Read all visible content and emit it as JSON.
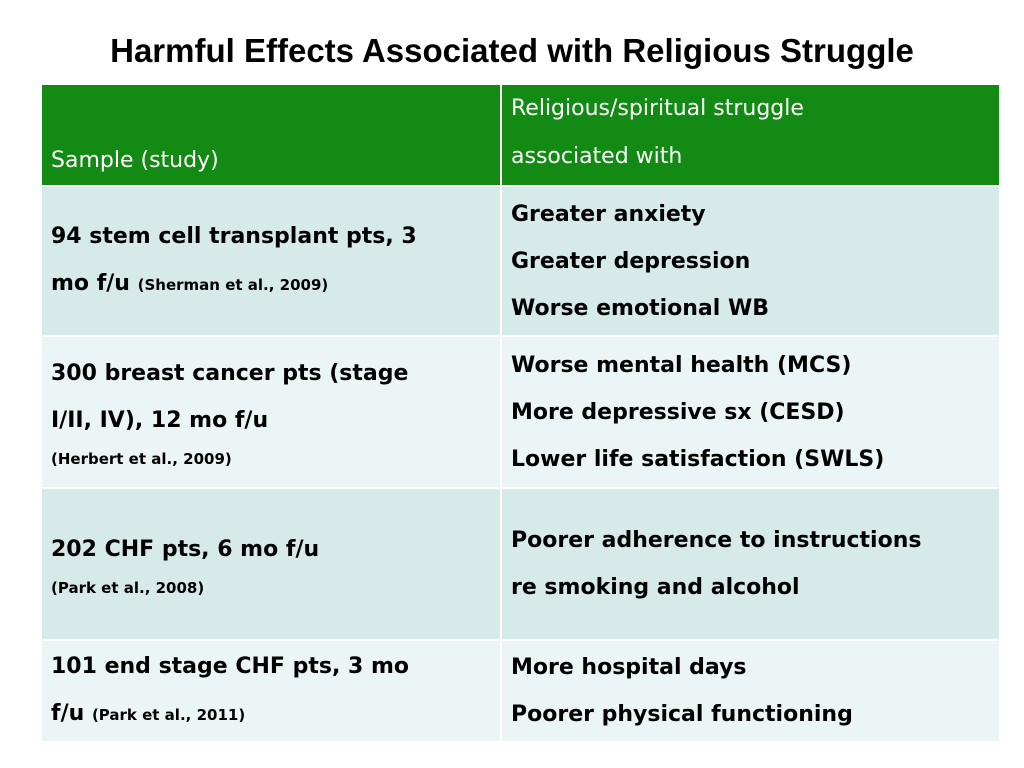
{
  "title": "Harmful Effects Associated with Religious Struggle",
  "header": {
    "col1": "Sample (study)",
    "col2_line1": "Religious/spiritual struggle",
    "col2_line2": "associated with"
  },
  "rows": [
    {
      "sample_line1": "94 stem cell transplant pts, 3",
      "sample_line2": "mo f/u",
      "citation": "(Sherman et al., 2009)",
      "effects": [
        "Greater anxiety",
        "Greater depression",
        "Worse emotional WB"
      ]
    },
    {
      "sample_line1": "300 breast cancer pts (stage",
      "sample_line2": "I/II, IV), 12 mo f/u",
      "citation": "(Herbert et al., 2009)",
      "effects": [
        "Worse mental health (MCS)",
        "More depressive sx (CESD)",
        "Lower life satisfaction (SWLS)"
      ]
    },
    {
      "sample_line1": "202 CHF pts, 6 mo f/u",
      "citation": "(Park et al., 2008)",
      "effects": [
        "Poorer adherence to instructions",
        "re smoking and alcohol"
      ]
    },
    {
      "sample_line1": "101 end stage CHF pts, 3 mo",
      "sample_line2": "f/u",
      "citation": "(Park et al., 2011)",
      "effects": [
        "More hospital days",
        "Poorer physical functioning"
      ]
    }
  ],
  "colors": {
    "header_bg": "#138a13",
    "row_band_dark": "#d6eaea",
    "row_band_light": "#ecf5f5"
  }
}
